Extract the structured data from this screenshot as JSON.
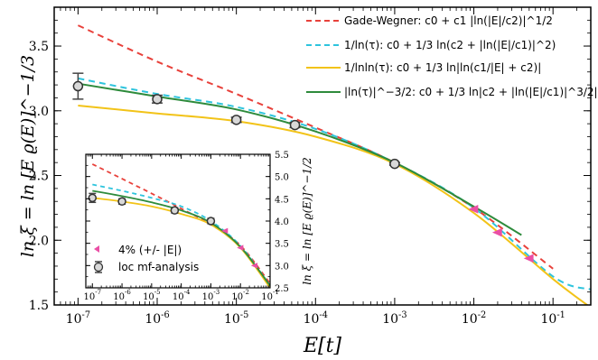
{
  "chart_data": [
    {
      "type": "line",
      "xscale": "log",
      "xlim": [
        5e-08,
        0.3
      ],
      "ylim": [
        1.5,
        3.8
      ],
      "xlabel": "E[t]",
      "ylabel": "ln ξ = ln [E ϱ(E)]^−1/3",
      "x_tick_labels": [
        "10-7",
        "10-6",
        "10-5",
        "10-4",
        "10-3",
        "10-2",
        "10-1"
      ],
      "y_tick_labels": [
        "1.5",
        "2.0",
        "2.5",
        "3.0",
        "3.5"
      ],
      "legend_placement": "top-right",
      "series": [
        {
          "name": "Gade-Wegner: c0 + c1 |ln(|E|/c2)|^1/2",
          "color": "#e8413b",
          "style": "dashed",
          "x": [
            1e-07,
            1e-06,
            1e-05,
            0.0001,
            0.001,
            0.01,
            0.1
          ],
          "y": [
            3.66,
            3.38,
            3.13,
            2.87,
            2.6,
            2.25,
            1.78
          ]
        },
        {
          "name": "1/ln(τ): c0 + 1/3 ln(c2 + |ln(|E|/c1)|^2)",
          "color": "#2ec4dd",
          "style": "dashed",
          "x": [
            1e-07,
            1e-06,
            1e-05,
            0.0001,
            0.001,
            0.01,
            0.1,
            0.3
          ],
          "y": [
            3.25,
            3.13,
            3.03,
            2.86,
            2.6,
            2.25,
            1.72,
            1.62
          ]
        },
        {
          "name": "1/lnln(τ): c0 + 1/3 ln|ln(c1/|E| + c2)|",
          "color": "#f2c318",
          "style": "solid",
          "x": [
            1e-07,
            1e-06,
            1e-05,
            0.0001,
            0.001,
            0.01,
            0.1,
            0.3
          ],
          "y": [
            3.04,
            2.98,
            2.92,
            2.8,
            2.59,
            2.21,
            1.7,
            1.48
          ]
        },
        {
          "name": "|ln(τ)|^−3/2: c0 + 1/3 ln|c2 + |ln(|E|/c1)|^3/2|",
          "color": "#2e8b3c",
          "style": "solid",
          "x": [
            1e-07,
            1e-06,
            1e-05,
            0.0001,
            0.001,
            0.01,
            0.04
          ],
          "y": [
            3.21,
            3.11,
            3.01,
            2.84,
            2.6,
            2.26,
            2.04
          ]
        },
        {
          "name": "loc mf-analysis",
          "type": "errorbar",
          "color": "#666666",
          "x": [
            1e-07,
            1e-06,
            1e-05,
            5.5e-05,
            0.001
          ],
          "y": [
            3.19,
            3.09,
            2.93,
            2.89,
            2.59
          ],
          "yerr": [
            0.1,
            0.03,
            0.02,
            0.02,
            0.01
          ]
        },
        {
          "name": "4% (+/- |E|)",
          "type": "scatter",
          "color": "#ea4fa5",
          "x": [
            0.01,
            0.02,
            0.05
          ],
          "y": [
            2.24,
            2.06,
            1.86
          ]
        }
      ]
    },
    {
      "type": "line",
      "xscale": "log",
      "xlim": [
        6e-08,
        0.1
      ],
      "ylim": [
        2.5,
        5.5
      ],
      "ylabel": "ln ξ = ln [E ϱ(E)]^−1/2",
      "ylabel_position": "right",
      "x_tick_labels": [
        "10-7",
        "10-6",
        "10-5",
        "10-4",
        "10-3",
        "10-2",
        "10-1"
      ],
      "y_tick_labels": [
        "2.5",
        "3.0",
        "3.5",
        "4.0",
        "4.5",
        "5.0",
        "5.5"
      ],
      "legend_placement": "bottom-left",
      "legend": [
        "4% (+/- |E|)",
        "loc mf-analysis"
      ],
      "series": [
        {
          "name": "Gade-Wegner",
          "color": "#e8413b",
          "style": "dashed",
          "x": [
            1e-07,
            1e-06,
            1e-05,
            0.0001,
            0.001,
            0.01,
            0.1
          ],
          "y": [
            5.28,
            4.95,
            4.62,
            4.28,
            3.92,
            3.45,
            2.6
          ]
        },
        {
          "name": "1/ln(τ)",
          "color": "#2ec4dd",
          "style": "dashed",
          "x": [
            1e-07,
            1e-06,
            1e-05,
            0.0001,
            0.001,
            0.01,
            0.1
          ],
          "y": [
            4.82,
            4.68,
            4.52,
            4.33,
            4.0,
            3.44,
            2.55
          ]
        },
        {
          "name": "1/lnln(τ)",
          "color": "#f2c318",
          "style": "solid",
          "x": [
            1e-07,
            1e-06,
            1e-05,
            0.0001,
            0.001,
            0.01,
            0.1
          ],
          "y": [
            4.52,
            4.44,
            4.33,
            4.16,
            3.92,
            3.4,
            2.5
          ]
        },
        {
          "name": "|ln(τ)|^−3/2",
          "color": "#2e8b3c",
          "style": "solid",
          "x": [
            1e-07,
            1e-06,
            1e-05,
            0.0001,
            0.001,
            0.01,
            0.1
          ],
          "y": [
            4.68,
            4.56,
            4.42,
            4.24,
            3.96,
            3.42,
            2.55
          ]
        },
        {
          "name": "loc mf-analysis",
          "type": "errorbar",
          "color": "#666666",
          "x": [
            1e-07,
            1e-06,
            6e-05,
            0.001
          ],
          "y": [
            4.52,
            4.44,
            4.24,
            4.0
          ],
          "yerr": [
            0.1,
            0.06,
            0.06,
            0.06
          ]
        },
        {
          "name": "4% (+/- |E|)",
          "type": "scatter",
          "color": "#ea4fa5",
          "x": [
            0.003,
            0.01,
            0.03
          ],
          "y": [
            3.78,
            3.4,
            3.0
          ]
        }
      ]
    }
  ]
}
